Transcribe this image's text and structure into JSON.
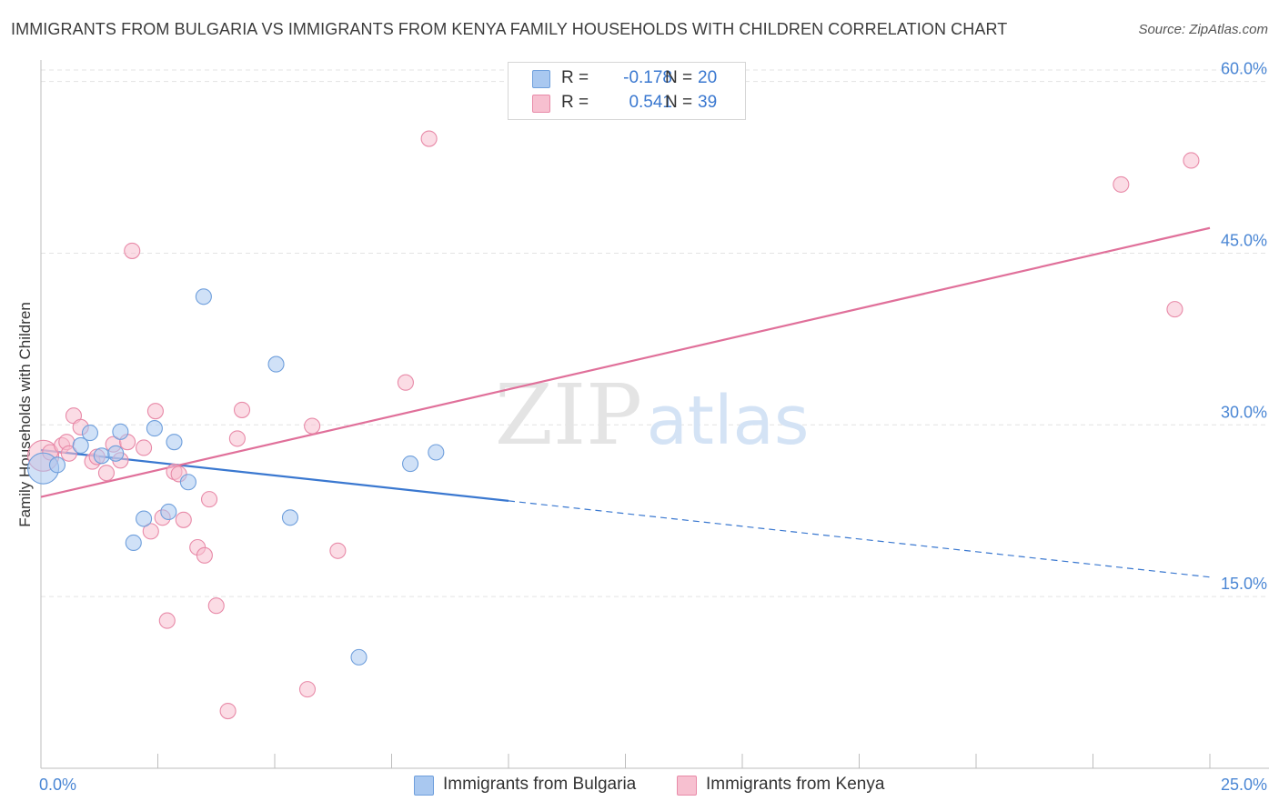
{
  "title": "IMMIGRANTS FROM BULGARIA VS IMMIGRANTS FROM KENYA FAMILY HOUSEHOLDS WITH CHILDREN CORRELATION CHART",
  "source": "Source: ZipAtlas.com",
  "watermark": {
    "zip": "ZIP",
    "atlas": "atlas"
  },
  "legend": {
    "rows": [
      {
        "r_label": "R =",
        "r_value": "-0.178",
        "n_label": "N =",
        "n_value": "20",
        "color": "#a9c8f0",
        "border": "#6f9fdc"
      },
      {
        "r_label": "R =",
        "r_value": "0.541",
        "n_label": "N =",
        "n_value": "39",
        "color": "#f7c0d0",
        "border": "#e88aa8"
      }
    ]
  },
  "bottom_legend": {
    "series_a": "Immigrants from Bulgaria",
    "series_b": "Immigrants from Kenya"
  },
  "chart_data": {
    "type": "scatter",
    "title": "IMMIGRANTS FROM BULGARIA VS IMMIGRANTS FROM KENYA FAMILY HOUSEHOLDS WITH CHILDREN CORRELATION CHART",
    "xlabel": "",
    "ylabel": "Family Households with Children",
    "xlim": [
      0,
      25
    ],
    "ylim": [
      0,
      61
    ],
    "x_tick_labels": [
      {
        "value": 0,
        "label": "0.0%"
      },
      {
        "value": 25,
        "label": "25.0%"
      }
    ],
    "y_tick_labels": [
      {
        "value": 15,
        "label": "15.0%"
      },
      {
        "value": 30,
        "label": "30.0%"
      },
      {
        "value": 45,
        "label": "45.0%"
      },
      {
        "value": 60,
        "label": "60.0%"
      }
    ],
    "grid": true,
    "series": [
      {
        "name": "Immigrants from Bulgaria",
        "color": "#6f9fdc",
        "fill": "#a9c8f0",
        "points": [
          {
            "x": 0.05,
            "y": 26.2,
            "big": true
          },
          {
            "x": 0.35,
            "y": 26.5
          },
          {
            "x": 0.85,
            "y": 28.2
          },
          {
            "x": 1.05,
            "y": 29.3
          },
          {
            "x": 1.3,
            "y": 27.3
          },
          {
            "x": 1.6,
            "y": 27.5
          },
          {
            "x": 1.7,
            "y": 29.4
          },
          {
            "x": 1.98,
            "y": 19.7
          },
          {
            "x": 2.2,
            "y": 21.8
          },
          {
            "x": 2.43,
            "y": 29.7
          },
          {
            "x": 2.73,
            "y": 22.4
          },
          {
            "x": 2.85,
            "y": 28.5
          },
          {
            "x": 3.15,
            "y": 25.0
          },
          {
            "x": 3.48,
            "y": 41.2
          },
          {
            "x": 5.03,
            "y": 35.3
          },
          {
            "x": 5.33,
            "y": 21.9
          },
          {
            "x": 6.8,
            "y": 9.7
          },
          {
            "x": 7.9,
            "y": 26.6
          },
          {
            "x": 8.45,
            "y": 27.6
          }
        ],
        "trend": {
          "x0": 0,
          "y0": 27.8,
          "x_solid_end": 10,
          "x1": 25,
          "y1": 16.7
        }
      },
      {
        "name": "Immigrants from Kenya",
        "color": "#e88aa8",
        "fill": "#f7c0d0",
        "points": [
          {
            "x": 0.05,
            "y": 27.3,
            "big": true
          },
          {
            "x": 0.2,
            "y": 27.6
          },
          {
            "x": 0.45,
            "y": 28.2
          },
          {
            "x": 0.55,
            "y": 28.5
          },
          {
            "x": 0.6,
            "y": 27.5
          },
          {
            "x": 0.7,
            "y": 30.8
          },
          {
            "x": 0.85,
            "y": 29.8
          },
          {
            "x": 1.1,
            "y": 26.8
          },
          {
            "x": 1.2,
            "y": 27.2
          },
          {
            "x": 1.4,
            "y": 25.8
          },
          {
            "x": 1.55,
            "y": 28.3
          },
          {
            "x": 1.7,
            "y": 26.9
          },
          {
            "x": 1.85,
            "y": 28.5
          },
          {
            "x": 1.95,
            "y": 45.2
          },
          {
            "x": 2.2,
            "y": 28.0
          },
          {
            "x": 2.35,
            "y": 20.7
          },
          {
            "x": 2.45,
            "y": 31.2
          },
          {
            "x": 2.6,
            "y": 21.9
          },
          {
            "x": 2.7,
            "y": 12.9
          },
          {
            "x": 2.85,
            "y": 25.9
          },
          {
            "x": 2.95,
            "y": 25.7
          },
          {
            "x": 3.05,
            "y": 21.7
          },
          {
            "x": 3.35,
            "y": 19.3
          },
          {
            "x": 3.5,
            "y": 18.6
          },
          {
            "x": 3.6,
            "y": 23.5
          },
          {
            "x": 3.75,
            "y": 14.2
          },
          {
            "x": 4.0,
            "y": 5.0
          },
          {
            "x": 4.2,
            "y": 28.8
          },
          {
            "x": 4.3,
            "y": 31.3
          },
          {
            "x": 5.7,
            "y": 6.9
          },
          {
            "x": 5.8,
            "y": 29.9
          },
          {
            "x": 6.35,
            "y": 19.0
          },
          {
            "x": 7.8,
            "y": 33.7
          },
          {
            "x": 8.3,
            "y": 55.0
          },
          {
            "x": 23.1,
            "y": 51.0
          },
          {
            "x": 24.25,
            "y": 40.1
          },
          {
            "x": 24.6,
            "y": 53.1
          }
        ],
        "trend": {
          "x0": 0,
          "y0": 23.7,
          "x_solid_end": 25,
          "x1": 25,
          "y1": 47.2
        }
      }
    ]
  }
}
